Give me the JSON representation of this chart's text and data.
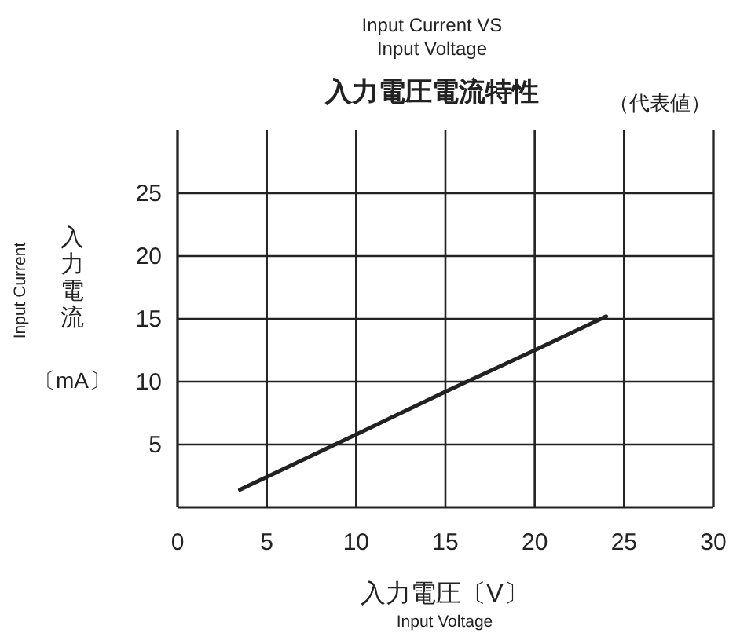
{
  "chart_data": {
    "type": "line",
    "subtitle": "Input Current VS\nInput Voltage",
    "title": "入力電圧電流特性",
    "xlabel": "入力電圧〔V〕",
    "ylabel": "入力電流〔mA〕",
    "annotations": [
      "（代表値）",
      "Input Voltage",
      "Input Current"
    ],
    "x": [
      3.5,
      10,
      15,
      20,
      24
    ],
    "series": [
      {
        "color": "#222222",
        "values": [
          1.4,
          5.8,
          9.2,
          12.5,
          15.2
        ]
      }
    ],
    "xlim": [
      0,
      30
    ],
    "ylim": [
      0,
      30
    ],
    "xticks": [
      0,
      5,
      10,
      15,
      20,
      25,
      30
    ],
    "yticks": [
      5,
      10,
      15,
      20,
      25
    ],
    "grid": true,
    "line_style": "solid"
  }
}
